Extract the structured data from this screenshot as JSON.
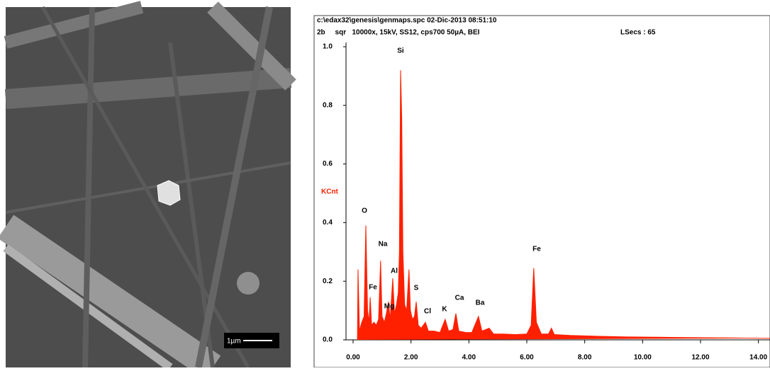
{
  "image": {
    "scale_label": "1µm"
  },
  "chart_data": {
    "type": "area",
    "header": [
      "c:\\edax32\\genesis\\genmaps.spc  02-Dic-2013 08:51:10",
      "2b     sqr   10000x, 15kV, SS12, cps700 50µA, BEI",
      "LSecs : 65"
    ],
    "y_label": "KCnt",
    "annotations": [
      "Si",
      "O",
      "Na",
      "Fe",
      "Al",
      "Mg",
      "S",
      "Cl",
      "K",
      "Ca",
      "Ba",
      "Fe"
    ],
    "x": [
      0.15,
      0.17,
      0.22,
      0.3,
      0.38,
      0.44,
      0.5,
      0.55,
      0.59,
      0.64,
      0.72,
      0.8,
      0.88,
      0.95,
      1.0,
      1.08,
      1.15,
      1.22,
      1.28,
      1.37,
      1.43,
      1.5,
      1.56,
      1.6,
      1.64,
      1.68,
      1.72,
      1.78,
      1.85,
      1.93,
      1.98,
      2.05,
      2.12,
      2.18,
      2.25,
      2.35,
      2.5,
      2.6,
      2.8,
      3.0,
      3.18,
      3.3,
      3.45,
      3.55,
      3.65,
      3.9,
      4.1,
      4.33,
      4.45,
      4.7,
      4.85,
      5.2,
      5.6,
      6.0,
      6.15,
      6.24,
      6.33,
      6.5,
      6.75,
      6.85,
      6.95,
      7.5,
      8.5,
      9.5,
      10.5,
      11.5,
      12.5,
      13.5,
      14.4
    ],
    "series": [
      {
        "color": "#ff2000",
        "values": [
          0.0,
          0.24,
          0.03,
          0.06,
          0.08,
          0.39,
          0.1,
          0.06,
          0.145,
          0.05,
          0.06,
          0.05,
          0.07,
          0.27,
          0.08,
          0.06,
          0.09,
          0.13,
          0.07,
          0.21,
          0.09,
          0.12,
          0.16,
          0.3,
          0.92,
          0.76,
          0.3,
          0.12,
          0.1,
          0.24,
          0.1,
          0.07,
          0.08,
          0.13,
          0.05,
          0.04,
          0.06,
          0.03,
          0.03,
          0.025,
          0.07,
          0.03,
          0.035,
          0.09,
          0.03,
          0.025,
          0.025,
          0.08,
          0.03,
          0.04,
          0.02,
          0.02,
          0.018,
          0.02,
          0.05,
          0.245,
          0.06,
          0.02,
          0.02,
          0.04,
          0.018,
          0.015,
          0.012,
          0.01,
          0.009,
          0.008,
          0.007,
          0.006,
          0.005
        ]
      }
    ],
    "xlim": [
      0,
      14.4
    ],
    "ylim": [
      0,
      1
    ],
    "xticks": [
      {
        "value": 0,
        "label": "0.00"
      },
      {
        "value": 2,
        "label": "2.00"
      },
      {
        "value": 4,
        "label": "4.00"
      },
      {
        "value": 6,
        "label": "6.00"
      },
      {
        "value": 8,
        "label": "8.00"
      },
      {
        "value": 10,
        "label": "10.00"
      },
      {
        "value": 12,
        "label": "12.00"
      },
      {
        "value": 14,
        "label": "14.00"
      }
    ],
    "yticks": [
      {
        "value": 0,
        "label": "0.0"
      },
      {
        "value": 0.2,
        "label": "0.2"
      },
      {
        "value": 0.4,
        "label": "0.4"
      },
      {
        "value": 0.6,
        "label": "0.6"
      },
      {
        "value": 0.8,
        "label": "0.8"
      },
      {
        "value": 1,
        "label": "1.0"
      }
    ]
  }
}
